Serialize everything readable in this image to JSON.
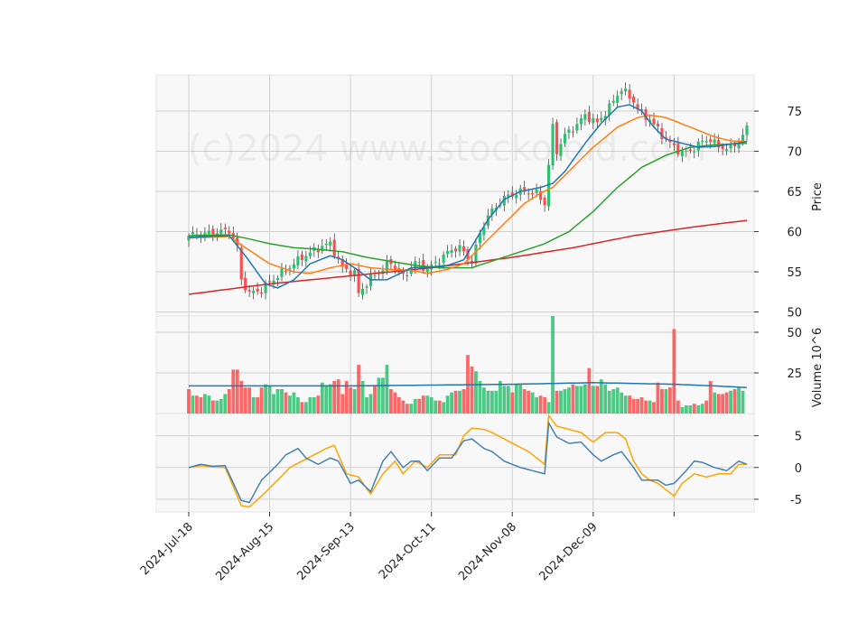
{
  "chart_data": {
    "type": "candlestick",
    "watermark": "(c)2024 www.stockoloid.com",
    "x_ticks": [
      "2024-Jul-18",
      "2024-Aug-15",
      "2024-Sep-13",
      "2024-Oct-11",
      "2024-Nov-08",
      "2024-Dec-09"
    ],
    "colors": {
      "up": "#2fbf71",
      "down": "#ff4d4d",
      "ma_short": "#1f77b4",
      "ma_mid": "#ff7f0e",
      "ma_long": "#2ca02c",
      "ma_200": "#d62728",
      "volume_avg": "#1f77b4",
      "ind_a": "#4682b4",
      "ind_b": "#ffa500",
      "panel_bg": "#f8f8f8",
      "grid": "#d0d0d0"
    },
    "panels": [
      {
        "name": "price",
        "ylabel": "Price",
        "ylim": [
          49.5,
          79.5
        ],
        "y_ticks": [
          50,
          55,
          60,
          65,
          70,
          75
        ],
        "ohlc_anchors": [
          [
            0,
            59.5
          ],
          [
            5,
            59.8
          ],
          [
            10,
            60.2
          ],
          [
            12,
            58
          ],
          [
            13,
            54
          ],
          [
            15,
            52.3
          ],
          [
            18,
            52.8
          ],
          [
            22,
            54.5
          ],
          [
            28,
            56.8
          ],
          [
            33,
            58.2
          ],
          [
            35,
            58.5
          ],
          [
            38,
            55.5
          ],
          [
            41,
            54.8
          ],
          [
            42,
            52.3
          ],
          [
            45,
            54.2
          ],
          [
            50,
            56.2
          ],
          [
            53,
            54.3
          ],
          [
            56,
            56.2
          ],
          [
            59,
            55.3
          ],
          [
            62,
            56.5
          ],
          [
            65,
            57.8
          ],
          [
            67,
            58
          ],
          [
            70,
            56.2
          ],
          [
            72,
            59.8
          ],
          [
            74,
            62
          ],
          [
            78,
            64.2
          ],
          [
            82,
            65
          ],
          [
            86,
            64.8
          ],
          [
            88,
            63.5
          ],
          [
            90,
            73
          ],
          [
            91,
            70
          ],
          [
            93,
            72
          ],
          [
            96,
            73.3
          ],
          [
            98,
            74.5
          ],
          [
            101,
            73.5
          ],
          [
            104,
            75.5
          ],
          [
            107,
            77.8
          ],
          [
            110,
            76.2
          ],
          [
            112,
            74.5
          ],
          [
            114,
            74
          ],
          [
            117,
            72
          ],
          [
            120,
            70.5
          ],
          [
            122,
            69.8
          ],
          [
            124,
            70
          ],
          [
            127,
            71.2
          ],
          [
            129,
            71.5
          ],
          [
            131,
            70.5
          ],
          [
            134,
            70.4
          ],
          [
            136,
            71.2
          ],
          [
            138,
            72.8
          ]
        ],
        "ma_short_anchors": [
          [
            0,
            59.3
          ],
          [
            10,
            59.5
          ],
          [
            14,
            57
          ],
          [
            19,
            53.5
          ],
          [
            22,
            53
          ],
          [
            26,
            54
          ],
          [
            30,
            56
          ],
          [
            35,
            57
          ],
          [
            38,
            56.5
          ],
          [
            41,
            55.5
          ],
          [
            45,
            54
          ],
          [
            49,
            54
          ],
          [
            55,
            55.5
          ],
          [
            60,
            55.6
          ],
          [
            64,
            55.8
          ],
          [
            68,
            56.5
          ],
          [
            74,
            61.5
          ],
          [
            78,
            64
          ],
          [
            82,
            65
          ],
          [
            87,
            65.5
          ],
          [
            90,
            66
          ],
          [
            93,
            67.5
          ],
          [
            98,
            71
          ],
          [
            102,
            73.5
          ],
          [
            106,
            75.5
          ],
          [
            109,
            75.8
          ],
          [
            112,
            75
          ],
          [
            115,
            73
          ],
          [
            118,
            71.5
          ],
          [
            122,
            71
          ],
          [
            126,
            70.5
          ],
          [
            130,
            70.6
          ],
          [
            134,
            70.9
          ],
          [
            138,
            71.2
          ]
        ],
        "ma_mid_anchors": [
          [
            0,
            59.2
          ],
          [
            10,
            59.4
          ],
          [
            14,
            58
          ],
          [
            20,
            56
          ],
          [
            26,
            55
          ],
          [
            30,
            54.8
          ],
          [
            35,
            55.5
          ],
          [
            40,
            56
          ],
          [
            45,
            55.5
          ],
          [
            50,
            55.3
          ],
          [
            55,
            55.2
          ],
          [
            59,
            54.8
          ],
          [
            64,
            55.3
          ],
          [
            68,
            56
          ],
          [
            74,
            59
          ],
          [
            78,
            61
          ],
          [
            83,
            63.5
          ],
          [
            87,
            64.8
          ],
          [
            90,
            65.5
          ],
          [
            95,
            68
          ],
          [
            100,
            70.5
          ],
          [
            106,
            73
          ],
          [
            111,
            74.2
          ],
          [
            114,
            74.5
          ],
          [
            118,
            74.2
          ],
          [
            124,
            73
          ],
          [
            130,
            71.8
          ],
          [
            134,
            71.3
          ],
          [
            138,
            71.2
          ]
        ],
        "ma_long_anchors": [
          [
            0,
            59.5
          ],
          [
            10,
            59.6
          ],
          [
            14,
            59.2
          ],
          [
            20,
            58.5
          ],
          [
            26,
            58
          ],
          [
            32,
            57.8
          ],
          [
            38,
            57.5
          ],
          [
            44,
            56.8
          ],
          [
            50,
            56.3
          ],
          [
            56,
            55.8
          ],
          [
            62,
            55.5
          ],
          [
            66,
            55.5
          ],
          [
            70,
            55.5
          ],
          [
            76,
            56.5
          ],
          [
            82,
            57.5
          ],
          [
            88,
            58.5
          ],
          [
            94,
            60
          ],
          [
            100,
            62.5
          ],
          [
            106,
            65.5
          ],
          [
            112,
            68
          ],
          [
            118,
            69.5
          ],
          [
            124,
            70.5
          ],
          [
            130,
            70.8
          ],
          [
            138,
            71
          ]
        ],
        "ma_200_anchors": [
          [
            0,
            52.2
          ],
          [
            20,
            53.5
          ],
          [
            40,
            54.5
          ],
          [
            60,
            55.5
          ],
          [
            80,
            56.8
          ],
          [
            95,
            58
          ],
          [
            110,
            59.5
          ],
          [
            125,
            60.6
          ],
          [
            138,
            61.4
          ]
        ]
      },
      {
        "name": "volume",
        "ylabel": "Volume  10^6",
        "ylim": [
          0,
          60
        ],
        "y_ticks": [
          25,
          50
        ],
        "volumes": [
          15,
          11,
          11,
          10,
          12,
          11,
          8,
          8,
          9,
          12,
          15,
          27,
          27,
          20,
          16,
          16,
          10,
          10,
          16,
          18,
          17,
          12,
          15,
          15,
          13,
          11,
          13,
          10,
          7,
          7,
          10,
          10,
          11,
          19,
          17,
          18,
          20,
          21,
          12,
          20,
          16,
          15,
          30,
          20,
          10,
          12,
          17,
          22,
          22,
          30,
          15,
          13,
          10,
          8,
          6,
          6,
          9,
          9,
          11,
          11,
          10,
          8,
          8,
          7,
          11,
          13,
          14,
          14,
          15,
          36,
          29,
          26,
          20,
          16,
          14,
          14,
          14,
          20,
          17,
          17,
          13,
          18,
          18,
          15,
          14,
          13,
          10,
          11,
          10,
          7,
          60,
          14,
          14,
          15,
          16,
          18,
          17,
          17,
          18,
          28,
          17,
          17,
          21,
          18,
          14,
          15,
          16,
          13,
          11,
          11,
          9,
          9,
          10,
          8,
          8,
          7,
          19,
          15,
          15,
          16,
          52,
          8,
          4,
          5,
          5,
          6,
          5,
          6,
          8,
          20,
          13,
          12,
          12,
          13,
          14,
          15,
          16,
          14
        ],
        "volume_avg_anchors": [
          [
            0,
            17
          ],
          [
            40,
            17
          ],
          [
            80,
            18
          ],
          [
            100,
            19
          ],
          [
            110,
            18.5
          ],
          [
            120,
            18
          ],
          [
            130,
            17
          ],
          [
            138,
            16
          ]
        ]
      },
      {
        "name": "indicator",
        "ylabel": "",
        "ylim": [
          -7,
          8.5
        ],
        "y_ticks": [
          -5,
          0,
          5
        ],
        "ind_a_anchors": [
          [
            0,
            0
          ],
          [
            3,
            0.5
          ],
          [
            6,
            0.2
          ],
          [
            9,
            0.3
          ],
          [
            13,
            -5.2
          ],
          [
            15,
            -5.5
          ],
          [
            18,
            -2
          ],
          [
            22,
            0.5
          ],
          [
            24,
            2
          ],
          [
            27,
            3
          ],
          [
            29,
            1.5
          ],
          [
            32,
            0.5
          ],
          [
            35,
            1.5
          ],
          [
            37,
            1
          ],
          [
            40,
            -2.5
          ],
          [
            42,
            -2
          ],
          [
            45,
            -3.8
          ],
          [
            48,
            1
          ],
          [
            50,
            2.5
          ],
          [
            53,
            0
          ],
          [
            55,
            1
          ],
          [
            57,
            1
          ],
          [
            59,
            -0.5
          ],
          [
            62,
            1.5
          ],
          [
            65,
            1.5
          ],
          [
            68,
            4.2
          ],
          [
            70,
            4.5
          ],
          [
            73,
            3
          ],
          [
            75,
            2.5
          ],
          [
            78,
            1
          ],
          [
            82,
            0
          ],
          [
            85,
            -0.5
          ],
          [
            88,
            -1
          ],
          [
            89,
            7
          ],
          [
            91,
            4.8
          ],
          [
            94,
            3.8
          ],
          [
            97,
            4
          ],
          [
            100,
            2
          ],
          [
            102,
            1
          ],
          [
            105,
            2
          ],
          [
            107,
            2.5
          ],
          [
            110,
            0
          ],
          [
            112,
            -2
          ],
          [
            114,
            -2
          ],
          [
            116,
            -2
          ],
          [
            118,
            -2.8
          ],
          [
            120,
            -2.5
          ],
          [
            123,
            -0.5
          ],
          [
            125,
            1
          ],
          [
            127,
            0.8
          ],
          [
            130,
            0
          ],
          [
            133,
            -0.5
          ],
          [
            136,
            1
          ],
          [
            138,
            0.5
          ]
        ],
        "ind_b_anchors": [
          [
            0,
            0
          ],
          [
            3,
            0.3
          ],
          [
            6,
            0.1
          ],
          [
            9,
            0
          ],
          [
            13,
            -6
          ],
          [
            15,
            -6.2
          ],
          [
            18,
            -4.5
          ],
          [
            22,
            -2
          ],
          [
            25,
            0
          ],
          [
            28,
            1
          ],
          [
            31,
            2
          ],
          [
            34,
            3
          ],
          [
            36,
            3.5
          ],
          [
            39,
            -1
          ],
          [
            42,
            -1.5
          ],
          [
            45,
            -4.2
          ],
          [
            48,
            -1
          ],
          [
            51,
            1
          ],
          [
            53,
            -1
          ],
          [
            56,
            1
          ],
          [
            59,
            0
          ],
          [
            62,
            2
          ],
          [
            66,
            2
          ],
          [
            68,
            5
          ],
          [
            70,
            6.2
          ],
          [
            73,
            6
          ],
          [
            75,
            5.5
          ],
          [
            78,
            4.5
          ],
          [
            81,
            3.5
          ],
          [
            84,
            2.5
          ],
          [
            88,
            0.5
          ],
          [
            89,
            8.2
          ],
          [
            91,
            6.5
          ],
          [
            94,
            6
          ],
          [
            97,
            5.5
          ],
          [
            100,
            4
          ],
          [
            103,
            5.5
          ],
          [
            106,
            5.5
          ],
          [
            108,
            4.5
          ],
          [
            110,
            1
          ],
          [
            112,
            -1
          ],
          [
            114,
            -2
          ],
          [
            116,
            -2.5
          ],
          [
            118,
            -3.5
          ],
          [
            120,
            -4.5
          ],
          [
            122,
            -2.5
          ],
          [
            125,
            -1
          ],
          [
            128,
            -1.5
          ],
          [
            131,
            -1
          ],
          [
            134,
            -1
          ],
          [
            136,
            0.5
          ],
          [
            138,
            0.5
          ]
        ]
      }
    ]
  }
}
